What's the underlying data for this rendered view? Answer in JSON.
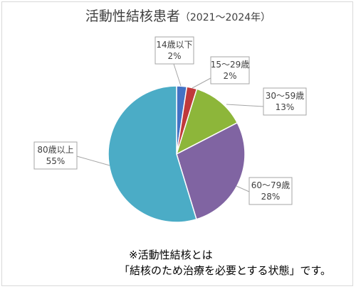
{
  "chart_data": {
    "type": "pie",
    "title": "活動性結核患者",
    "subtitle": "（2021～2024年）",
    "slices": [
      {
        "label": "14歳以下",
        "pct_text": "2%",
        "value": 2.4,
        "color": "#4472c4"
      },
      {
        "label": "15～29歳",
        "pct_text": "2%",
        "value": 2.4,
        "color": "#c0393b"
      },
      {
        "label": "30～59歳",
        "pct_text": "13%",
        "value": 12.6,
        "color": "#8db63a"
      },
      {
        "label": "60～79歳",
        "pct_text": "28%",
        "value": 27.9,
        "color": "#8064a2"
      },
      {
        "label": "80歳以上",
        "pct_text": "55%",
        "value": 54.7,
        "color": "#4bacc6"
      }
    ]
  },
  "note": {
    "line1": "※活動性結核とは",
    "line2": "「結核のため治療を必要とする状態」です。"
  }
}
